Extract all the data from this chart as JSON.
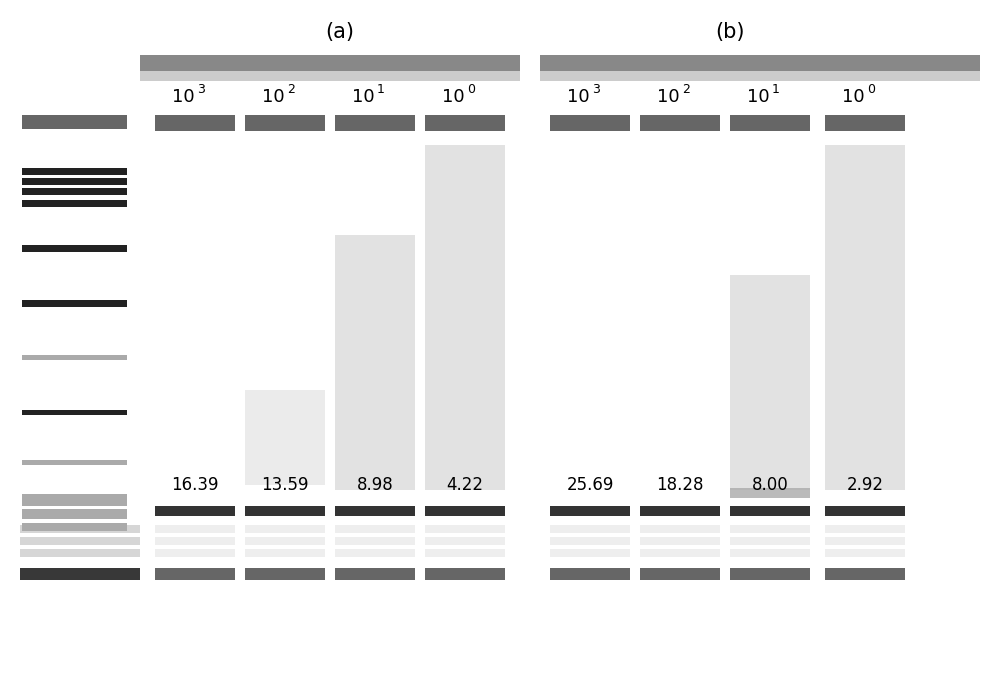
{
  "fig_width": 10.0,
  "fig_height": 6.88,
  "bg_color": "#ffffff",
  "title_a": "(a)",
  "title_b": "(b)",
  "title_fontsize": 15,
  "lane_label_fontsize": 14,
  "value_fontsize": 12,
  "panel_a_labels": [
    "10^3",
    "10^2",
    "10^1",
    "10^0"
  ],
  "panel_b_labels": [
    "10^3",
    "10^2",
    "10^1",
    "10^0"
  ],
  "panel_a_values": [
    "16.39",
    "13.59",
    "8.98",
    "4.22"
  ],
  "panel_b_values": [
    "25.69",
    "18.28",
    "8.00",
    "2.92"
  ],
  "dark_band_color": "#666666",
  "top_span_color": "#888888",
  "top_span_light": "#cccccc",
  "smear_color": "#dddddd",
  "smear_color2": "#e8e8e8",
  "bottom_band_color": "#333333",
  "marker_dark": "#222222",
  "marker_light": "#aaaaaa",
  "marker_mid": "#666666"
}
